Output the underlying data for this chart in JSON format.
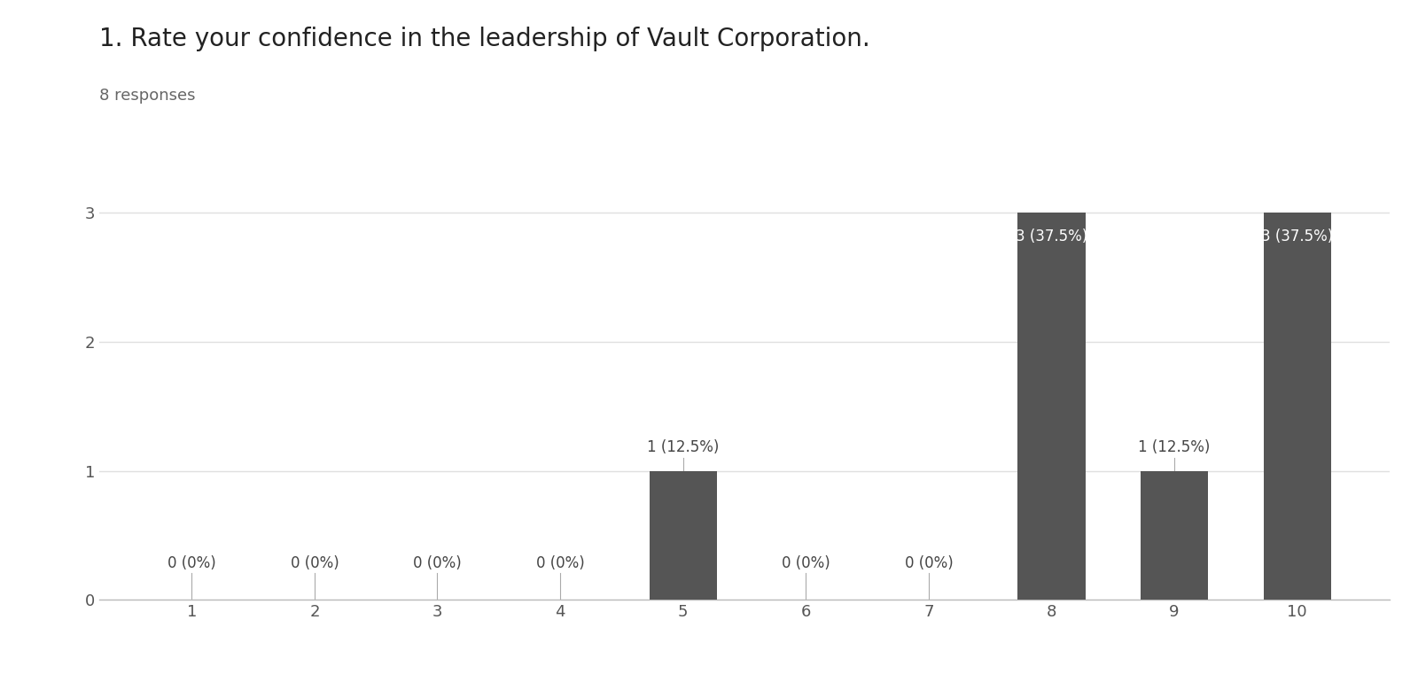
{
  "title": "1. Rate your confidence in the leadership of Vault Corporation.",
  "subtitle": "8 responses",
  "categories": [
    1,
    2,
    3,
    4,
    5,
    6,
    7,
    8,
    9,
    10
  ],
  "values": [
    0,
    0,
    0,
    0,
    1,
    0,
    0,
    3,
    1,
    3
  ],
  "labels": [
    "0 (0%)",
    "0 (0%)",
    "0 (0%)",
    "0 (0%)",
    "1 (12.5%)",
    "0 (0%)",
    "0 (0%)",
    "3 (37.5%)",
    "1 (12.5%)",
    "3 (37.5%)"
  ],
  "bar_color": "#555555",
  "background_color": "#ffffff",
  "ylim": [
    0,
    3.5
  ],
  "yticks": [
    0,
    1,
    2,
    3
  ],
  "title_fontsize": 20,
  "subtitle_fontsize": 13,
  "label_fontsize": 12,
  "tick_fontsize": 13,
  "grid_color": "#e0e0e0",
  "axis_label_color": "#555555",
  "label_color_outside": "#444444",
  "label_color_inside": "#ffffff",
  "connector_color": "#aaaaaa"
}
